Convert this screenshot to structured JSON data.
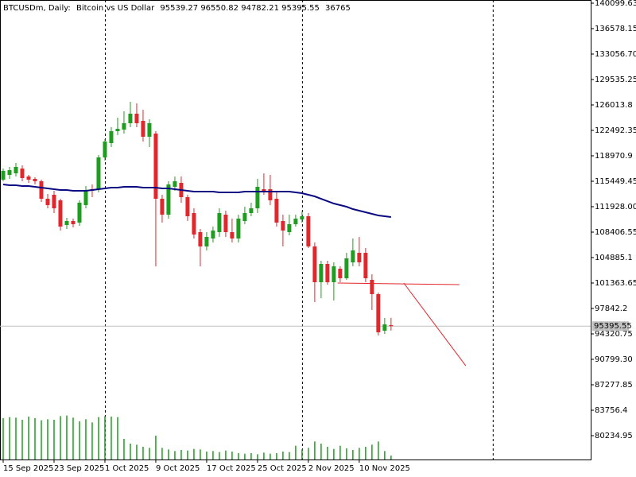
{
  "chart_data": {
    "type": "candlestick",
    "symbol": "BTCUSDm, Daily:",
    "description": "Bitcoin vs US Dollar",
    "categories": [
      "15 Sep 2025",
      null,
      null,
      null,
      null,
      null,
      null,
      null,
      "23 Sep 2025",
      null,
      null,
      null,
      null,
      null,
      null,
      null,
      "1 Oct 2025",
      null,
      null,
      null,
      null,
      null,
      null,
      null,
      "9 Oct 2025",
      null,
      null,
      null,
      null,
      null,
      null,
      null,
      "17 Oct 2025",
      null,
      null,
      null,
      null,
      null,
      null,
      null,
      "25 Oct 2025",
      null,
      null,
      null,
      null,
      null,
      null,
      null,
      "2 Nov 2025",
      null,
      null,
      null,
      null,
      null,
      null,
      null,
      "10 Nov 2025",
      null,
      null,
      null,
      null,
      null
    ],
    "open": [
      115669,
      116329,
      116549,
      117209,
      116109,
      115779,
      115449,
      113028,
      113578,
      112807,
      109396,
      109946,
      109726,
      112147,
      114348,
      114348,
      118750,
      120731,
      122382,
      122602,
      123482,
      124803,
      123812,
      121611,
      122052,
      113028,
      110827,
      114678,
      115229,
      113248,
      111047,
      108405,
      106425,
      107525,
      108405,
      110827,
      108405,
      107525,
      109946,
      111047,
      111707,
      114348,
      114348,
      113028,
      109946,
      108405,
      109506,
      110166,
      110607,
      106425,
      101472,
      104003,
      101472,
      103343,
      102023,
      104224,
      105544,
      105544,
      101802,
      99822,
      94759,
      95539.27
    ],
    "high": [
      117209,
      117430,
      117980,
      117650,
      116329,
      115999,
      115669,
      113688,
      114128,
      113028,
      110386,
      110276,
      112807,
      114788,
      115008,
      119080,
      121281,
      122932,
      124253,
      125133,
      126454,
      126234,
      125353,
      124033,
      122382,
      113578,
      115449,
      116109,
      116109,
      113578,
      111707,
      108846,
      108405,
      109176,
      111707,
      111377,
      110276,
      110827,
      111927,
      112477,
      115779,
      116549,
      116329,
      114128,
      110827,
      110827,
      110827,
      111267,
      111047,
      106975,
      104444,
      104444,
      104224,
      103673,
      105544,
      107525,
      107745,
      106204,
      102573,
      100042,
      96520,
      96550.82
    ],
    "low": [
      115449,
      115779,
      116109,
      115449,
      115229,
      115008,
      112587,
      111707,
      111047,
      108626,
      108846,
      109066,
      109286,
      111707,
      113248,
      113908,
      118310,
      120181,
      121832,
      122052,
      122932,
      122932,
      120951,
      120181,
      103673,
      109726,
      110276,
      114128,
      112477,
      109946,
      107525,
      103673,
      105874,
      106975,
      107745,
      107745,
      106975,
      106975,
      109506,
      110607,
      111047,
      113578,
      112147,
      109176,
      106425,
      107965,
      109176,
      109726,
      106204,
      98721,
      99271,
      101142,
      98941,
      101472,
      101802,
      103673,
      103673,
      101472,
      97621,
      94099,
      94319,
      94782.21
    ],
    "close": [
      116879,
      116989,
      117430,
      115889,
      115669,
      115449,
      113028,
      112147,
      111707,
      109176,
      109946,
      109506,
      112477,
      114128,
      114128,
      118750,
      120951,
      122382,
      122712,
      123482,
      124803,
      123482,
      121611,
      123482,
      113028,
      110827,
      115008,
      115449,
      113248,
      110607,
      108075,
      106425,
      107745,
      108626,
      111047,
      108405,
      107525,
      110276,
      111047,
      111707,
      114678,
      114128,
      112807,
      109726,
      108626,
      109506,
      110276,
      110607,
      106425,
      101472,
      104003,
      101472,
      103673,
      102023,
      104774,
      105874,
      104224,
      102023,
      99822,
      94539,
      95640,
      95395.55
    ],
    "volume": [
      390000,
      400000,
      395000,
      375000,
      405000,
      390000,
      370000,
      380000,
      375000,
      410000,
      415000,
      395000,
      360000,
      380000,
      350000,
      400000,
      410000,
      405000,
      400000,
      195000,
      150000,
      140000,
      120000,
      110000,
      225000,
      110000,
      95000,
      80000,
      90000,
      85000,
      100000,
      95000,
      75000,
      80000,
      70000,
      85000,
      75000,
      60000,
      55000,
      60000,
      50000,
      65000,
      55000,
      60000,
      75000,
      70000,
      130000,
      95000,
      110000,
      170000,
      150000,
      120000,
      100000,
      130000,
      105000,
      90000,
      110000,
      120000,
      140000,
      170000,
      80000,
      36765
    ],
    "ma": [
      115008,
      114898,
      114898,
      114788,
      114788,
      114678,
      114568,
      114458,
      114348,
      114238,
      114238,
      114128,
      114128,
      114128,
      114238,
      114348,
      114458,
      114568,
      114568,
      114678,
      114678,
      114678,
      114568,
      114568,
      114568,
      114458,
      114458,
      114348,
      114238,
      114128,
      114018,
      114018,
      114018,
      114018,
      113908,
      113908,
      113908,
      113908,
      114018,
      114018,
      114018,
      114018,
      114018,
      114018,
      114018,
      114018,
      113908,
      113798,
      113578,
      113358,
      113028,
      112697,
      112367,
      112147,
      111927,
      111597,
      111377,
      111157,
      110937,
      110717,
      110607,
      110497
    ],
    "up_color": "#1e9e1e",
    "down_color": "#e3262b",
    "ma_color": "#0a0a82",
    "volume_color": "#1e9e1e",
    "trendline_color": "#e3262b",
    "trendlines": [
      {
        "x": [
          52.6,
          71.75
        ],
        "y": [
          101360,
          101150
        ]
      },
      {
        "x": [
          63,
          72.75
        ],
        "y": [
          101360,
          89917
        ]
      }
    ],
    "separators": [
      16,
      47,
      77
    ],
    "xlim": [
      -0.5,
      92.4
    ],
    "ylim": [
      76933.5,
      140539.8
    ],
    "vlim": [
      0,
      450000
    ],
    "yticks": [
      140099.63,
      136578.15,
      {
        "value": 133056.7,
        "label": "133056.70"
      },
      129535.25,
      126013.8,
      122492.35,
      118970.9,
      115449.45,
      {
        "value": 111928,
        "label": "111928.00"
      },
      108406.55,
      104885.1,
      101363.65,
      97842.2,
      94320.75,
      {
        "value": 90799.3,
        "label": "90799.30"
      },
      87277.85,
      83756.4,
      80234.95
    ]
  }
}
